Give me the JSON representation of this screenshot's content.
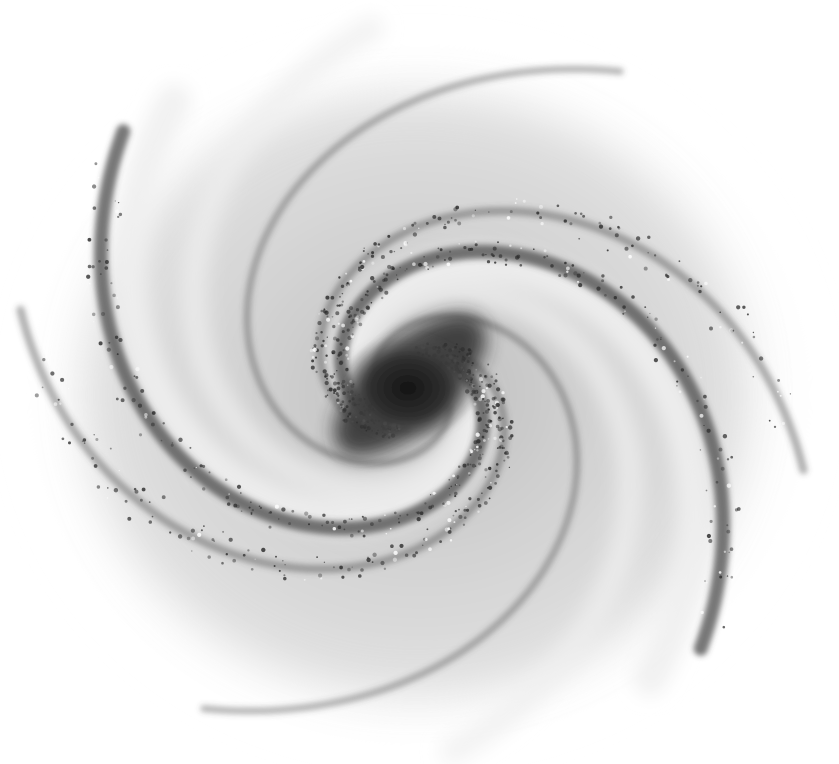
{
  "image": {
    "subject": "spiral-galaxy",
    "rendering": "grayscale",
    "colors": {
      "background": "#ffffff",
      "halo": "#d6d6d6",
      "arm_dust": "#4a4a4a",
      "arm_glow": "#efefef",
      "core": "#1e1e1e",
      "bar": "#2a2a2a"
    },
    "arm_count": 2
  }
}
